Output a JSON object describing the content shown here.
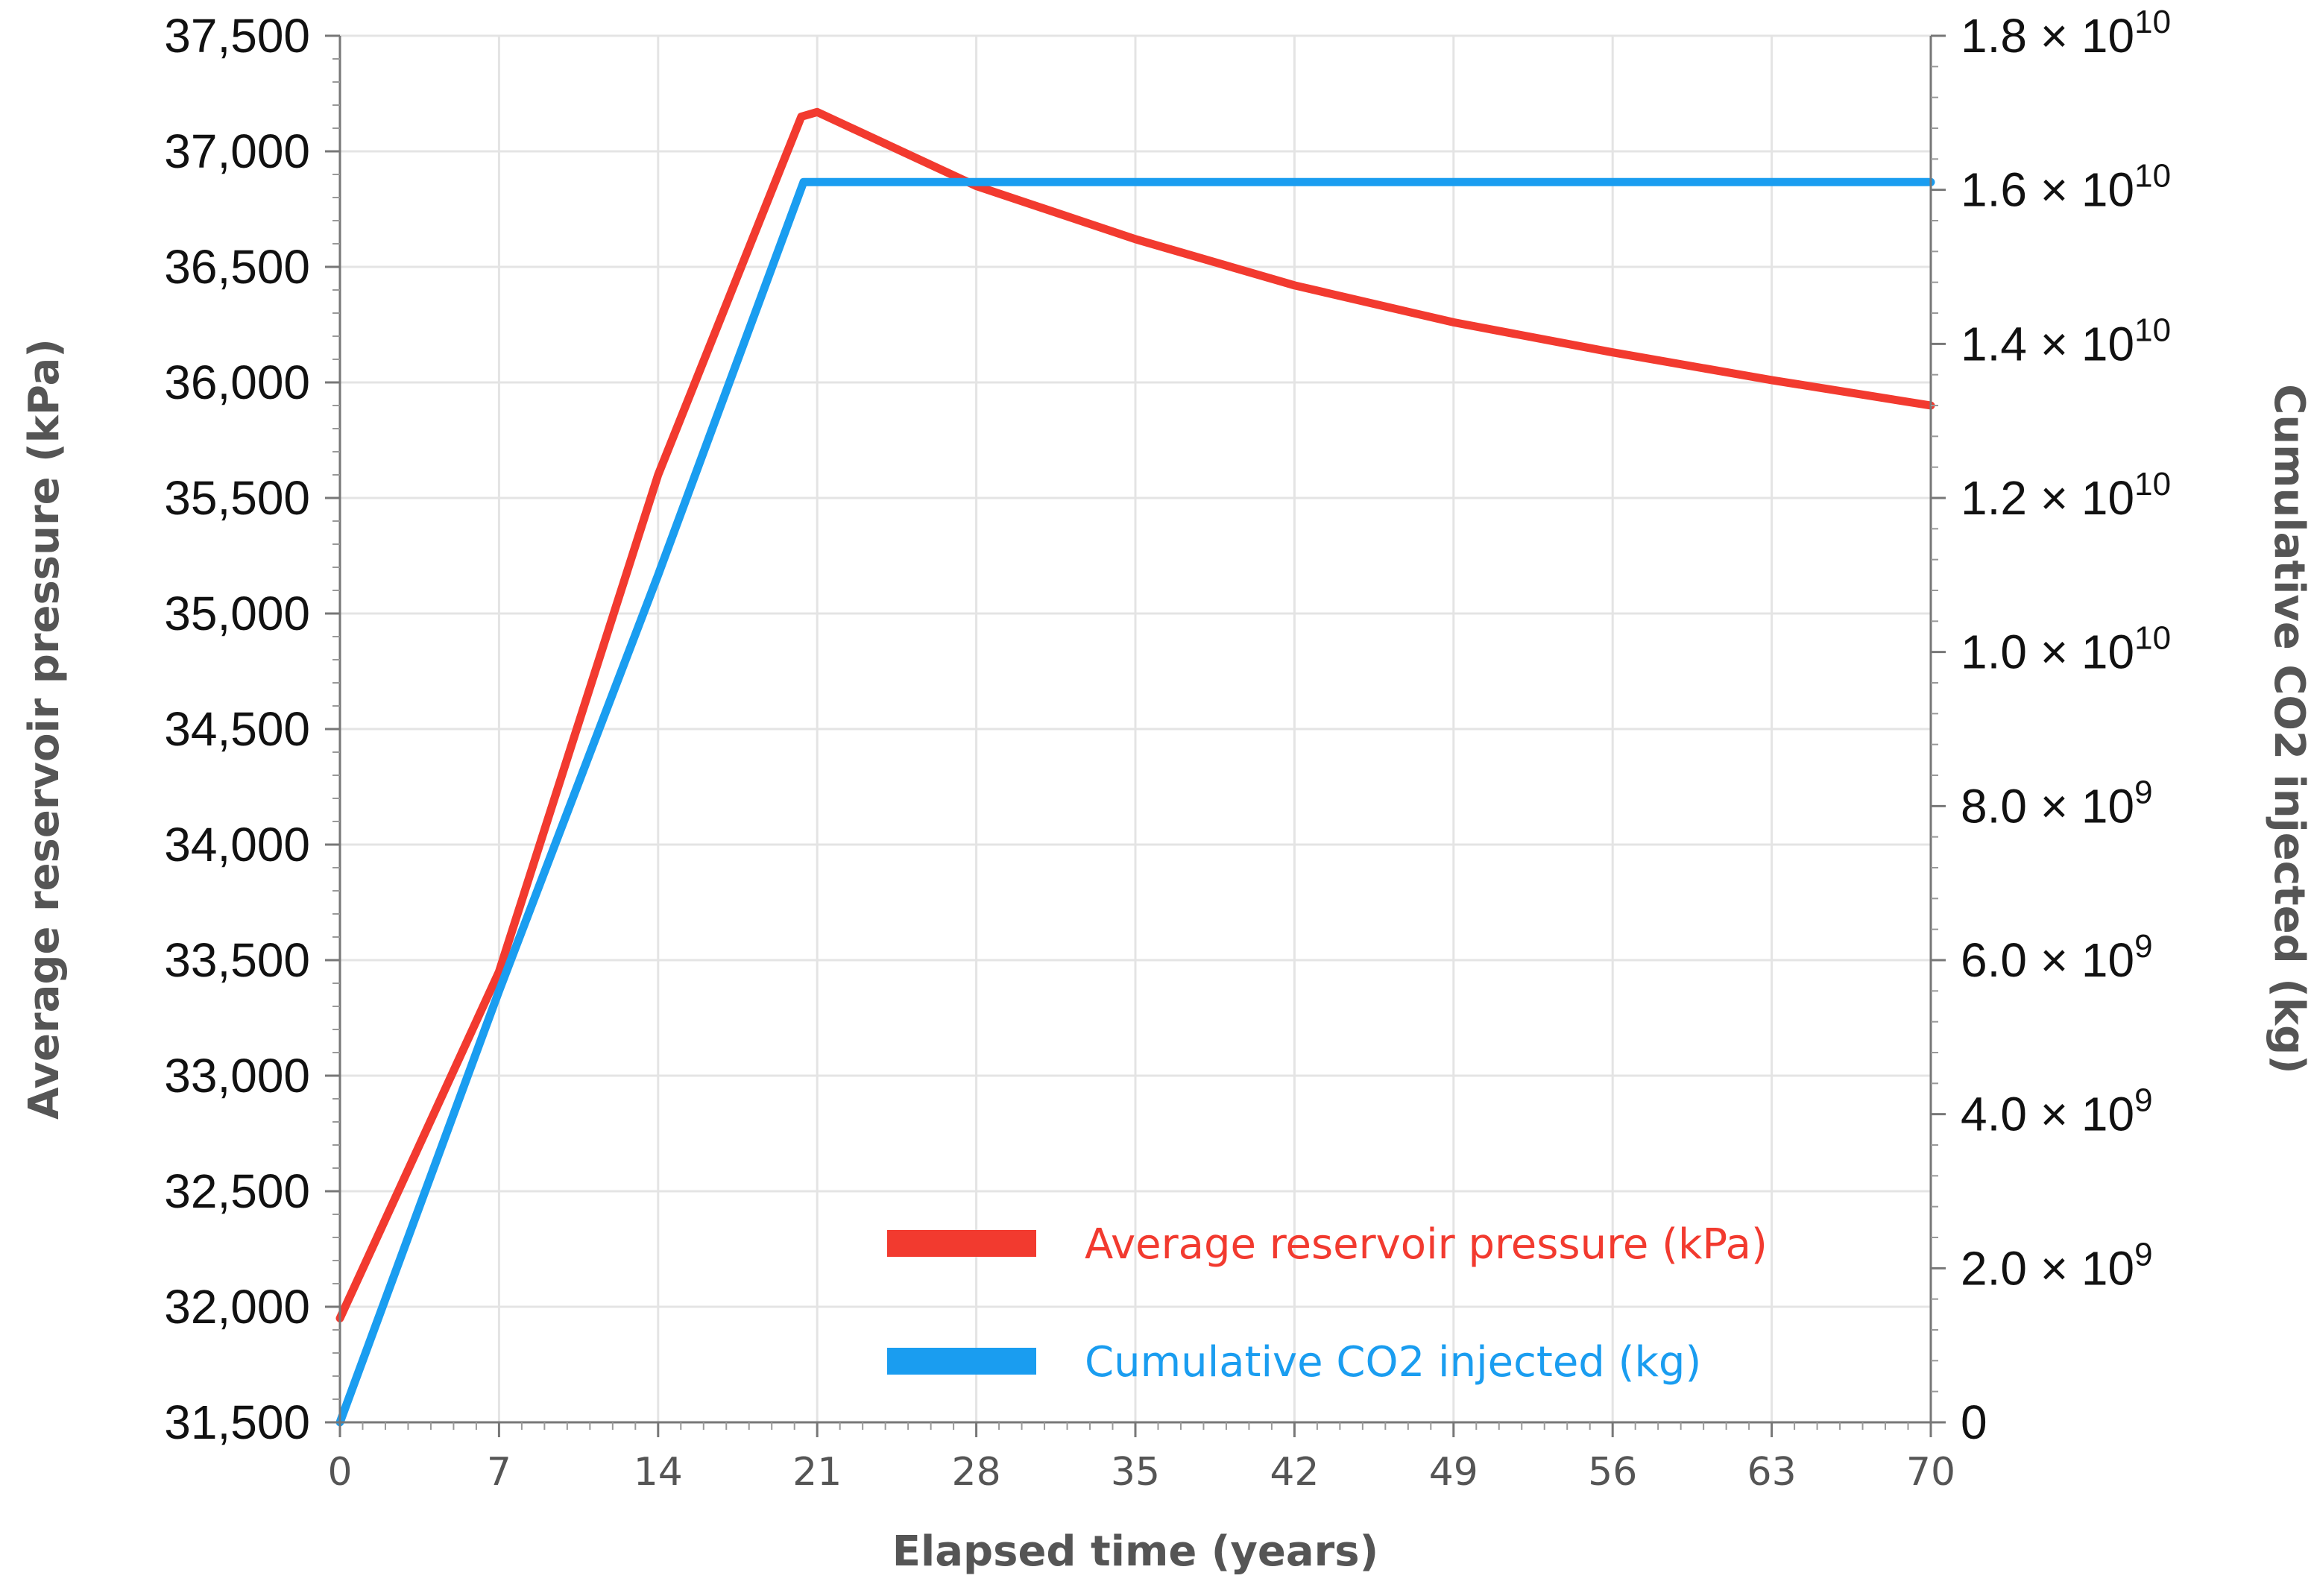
{
  "chart_data": {
    "type": "line",
    "xlabel": "Elapsed time (years)",
    "ylabel_left": "Average reservoir pressure  (kPa)",
    "ylabel_right": "Cumulative CO2 injected (kg)",
    "x_ticks": [
      "0",
      "7",
      "14",
      "21",
      "28",
      "35",
      "42",
      "49",
      "56",
      "63",
      "70"
    ],
    "xlim": [
      0,
      70
    ],
    "y_left_ticks": [
      "31,500",
      "32,000",
      "32,500",
      "33,000",
      "33,500",
      "34,000",
      "34,500",
      "35,000",
      "35,500",
      "36,000",
      "36,500",
      "37,000",
      "37,500"
    ],
    "ylim_left": [
      31500,
      37500
    ],
    "y_right_ticks": [
      {
        "mantissa": "0",
        "exp": ""
      },
      {
        "mantissa": "2.0 × 10",
        "exp": "9"
      },
      {
        "mantissa": "4.0 × 10",
        "exp": "9"
      },
      {
        "mantissa": "6.0 × 10",
        "exp": "9"
      },
      {
        "mantissa": "8.0 × 10",
        "exp": "9"
      },
      {
        "mantissa": "1.0 × 10",
        "exp": "10"
      },
      {
        "mantissa": "1.2 × 10",
        "exp": "10"
      },
      {
        "mantissa": "1.4 × 10",
        "exp": "10"
      },
      {
        "mantissa": "1.6 × 10",
        "exp": "10"
      },
      {
        "mantissa": "1.8 × 10",
        "exp": "10"
      }
    ],
    "ylim_right": [
      0,
      18000000000
    ],
    "grid": true,
    "series": [
      {
        "name": "Average reservoir pressure (kPa)",
        "color": "#f23a2f",
        "axis": "left",
        "x": [
          0,
          7,
          14,
          20.3,
          21,
          28,
          35,
          42,
          49,
          56,
          63,
          70
        ],
        "values": [
          31950,
          33450,
          35600,
          37150,
          37170,
          36850,
          36620,
          36420,
          36260,
          36130,
          36010,
          35900
        ]
      },
      {
        "name": "Cumulative CO2 injected (kg)",
        "color": "#1a9df0",
        "axis": "right",
        "x": [
          0,
          7,
          14,
          20.4,
          21,
          28,
          35,
          42,
          49,
          56,
          63,
          70
        ],
        "values": [
          0,
          5600000000,
          11000000000,
          16100000000,
          16100000000,
          16100000000,
          16100000000,
          16100000000,
          16100000000,
          16100000000,
          16100000000,
          16100000000
        ]
      }
    ],
    "legend": {
      "placement": "bottom-right",
      "entries": [
        "Average reservoir pressure (kPa)",
        "Cumulative CO2 injected (kg)"
      ]
    }
  }
}
